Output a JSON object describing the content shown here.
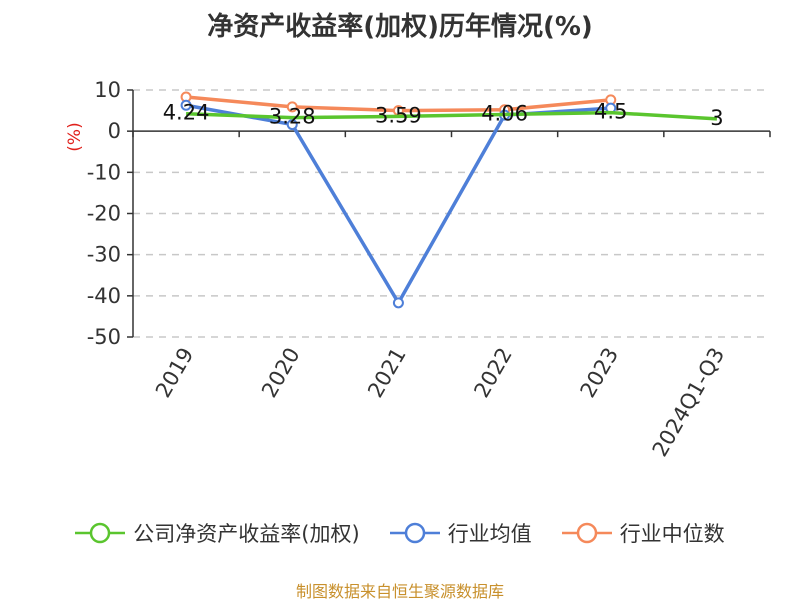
{
  "chart_data": {
    "type": "line",
    "title": "净资产收益率(加权)历年情况(%)",
    "unit_label": "(%)",
    "categories": [
      "2019",
      "2020",
      "2021",
      "2022",
      "2023",
      "2024Q1-Q3"
    ],
    "ylim": [
      -50,
      10
    ],
    "yticks": [
      10,
      0,
      -10,
      -20,
      -30,
      -40,
      -50
    ],
    "grid": true,
    "legend_position": "bottom",
    "series": [
      {
        "name": "公司净资产收益率(加权)",
        "color": "#5ac52e",
        "values": [
          4.24,
          3.28,
          3.59,
          4.06,
          4.5,
          3
        ],
        "labels": [
          "4.24",
          "3.28",
          "3.59",
          "4.06",
          "4.5",
          "3"
        ]
      },
      {
        "name": "行业均值",
        "color": "#4e7fd8",
        "values": [
          6.3,
          1.6,
          -41.7,
          3.9,
          5.6,
          null
        ]
      },
      {
        "name": "行业中位数",
        "color": "#f5895a",
        "values": [
          8.3,
          5.9,
          5.0,
          5.2,
          7.6,
          null
        ]
      }
    ]
  },
  "footer": {
    "source": "制图数据来自恒生聚源数据库"
  }
}
